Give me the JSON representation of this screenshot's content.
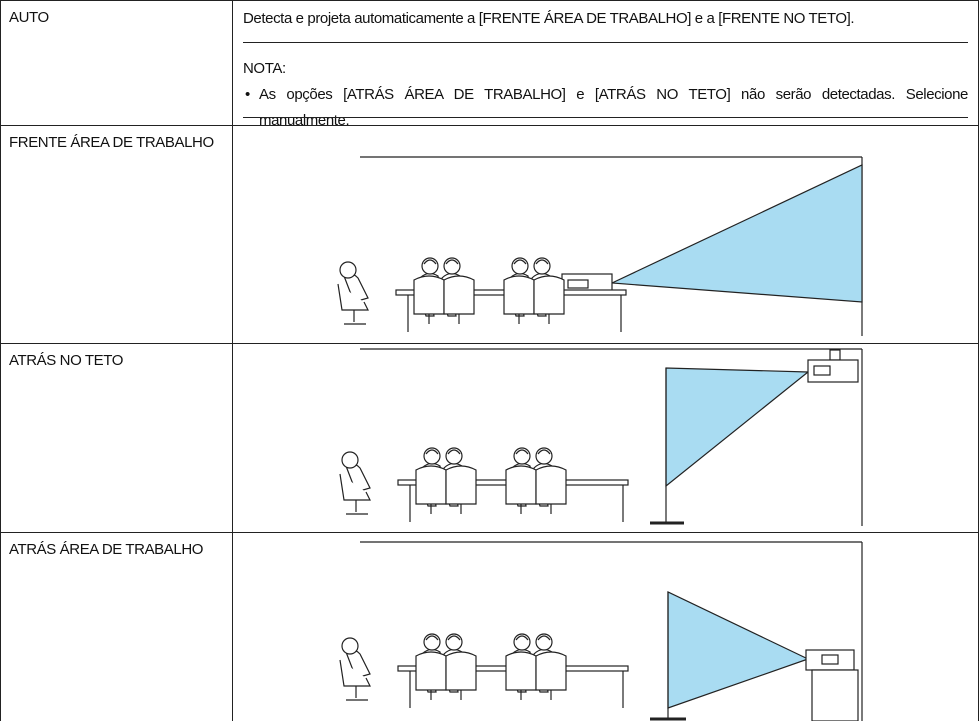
{
  "rows": [
    {
      "label": "AUTO",
      "description": "Detecta e projeta automaticamente a [FRENTE ÁREA DE TRABALHO] e a [FRENTE NO TETO].",
      "note": {
        "title": "NOTA:",
        "items": [
          "As opções [ATRÁS ÁREA DE TRABALHO] e [ATRÁS NO TETO] não serão detectadas. Selecione manualmente."
        ]
      }
    },
    {
      "label": "FRENTE ÁREA DE TRABALHO"
    },
    {
      "label": "ATRÁS NO TETO"
    },
    {
      "label": "ATRÁS ÁREA DE TRABALHO"
    }
  ]
}
